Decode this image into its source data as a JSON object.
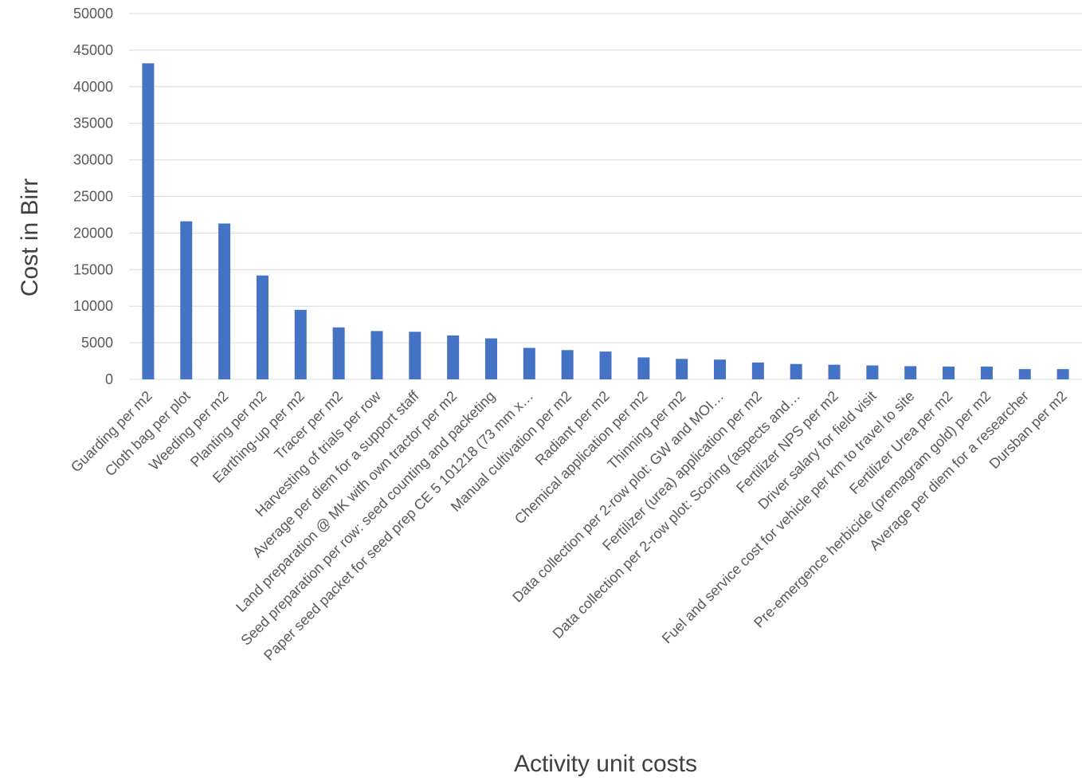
{
  "chart_data": {
    "type": "bar",
    "title": "",
    "xlabel": "Activity unit costs",
    "ylabel": "Cost in Birr",
    "ylim": [
      0,
      50000
    ],
    "yticks": [
      0,
      5000,
      10000,
      15000,
      20000,
      25000,
      30000,
      35000,
      40000,
      45000,
      50000
    ],
    "grid": "horizontal",
    "legend": "none",
    "bar_color": "#4472C4",
    "grid_color": "#D9D9D9",
    "categories": [
      "Guarding per m2",
      "Cloth bag per plot",
      "Weeding per m2",
      "Planting per m2",
      "Earthing-up per m2",
      "Tracer per m2",
      "Harvesting of trials per row",
      "Average per diem for a support staff",
      "Land preparation @ MK with own tractor per m2",
      "Seed preparation per row: seed counting and packeting",
      "Paper seed packet for seed prep CE 5 101218 (73 mm x…",
      "Manual cultivation per m2",
      "Radiant per m2",
      "Chemical application per m2",
      "Thinning per m2",
      "Data collection per 2-row plot: GW and MOI…",
      "Fertilizer (urea) application per m2",
      "Data collection per 2-row plot: Scoring (aspects and…",
      "Fertilizer NPS per m2",
      "Driver salary for field visit",
      "Fuel and service cost for vehicle per km to travel to site",
      "Fertilizer Urea per m2",
      "Pre-emergence herbicide (premagram gold) per m2",
      "Average per diem for a researcher",
      "Dursban per m2"
    ],
    "values": [
      43200,
      21600,
      21300,
      14200,
      9500,
      7100,
      6600,
      6500,
      6000,
      5600,
      4300,
      4000,
      3800,
      3000,
      2800,
      2700,
      2300,
      2100,
      2000,
      1900,
      1800,
      1750,
      1750,
      1400,
      1400
    ]
  }
}
